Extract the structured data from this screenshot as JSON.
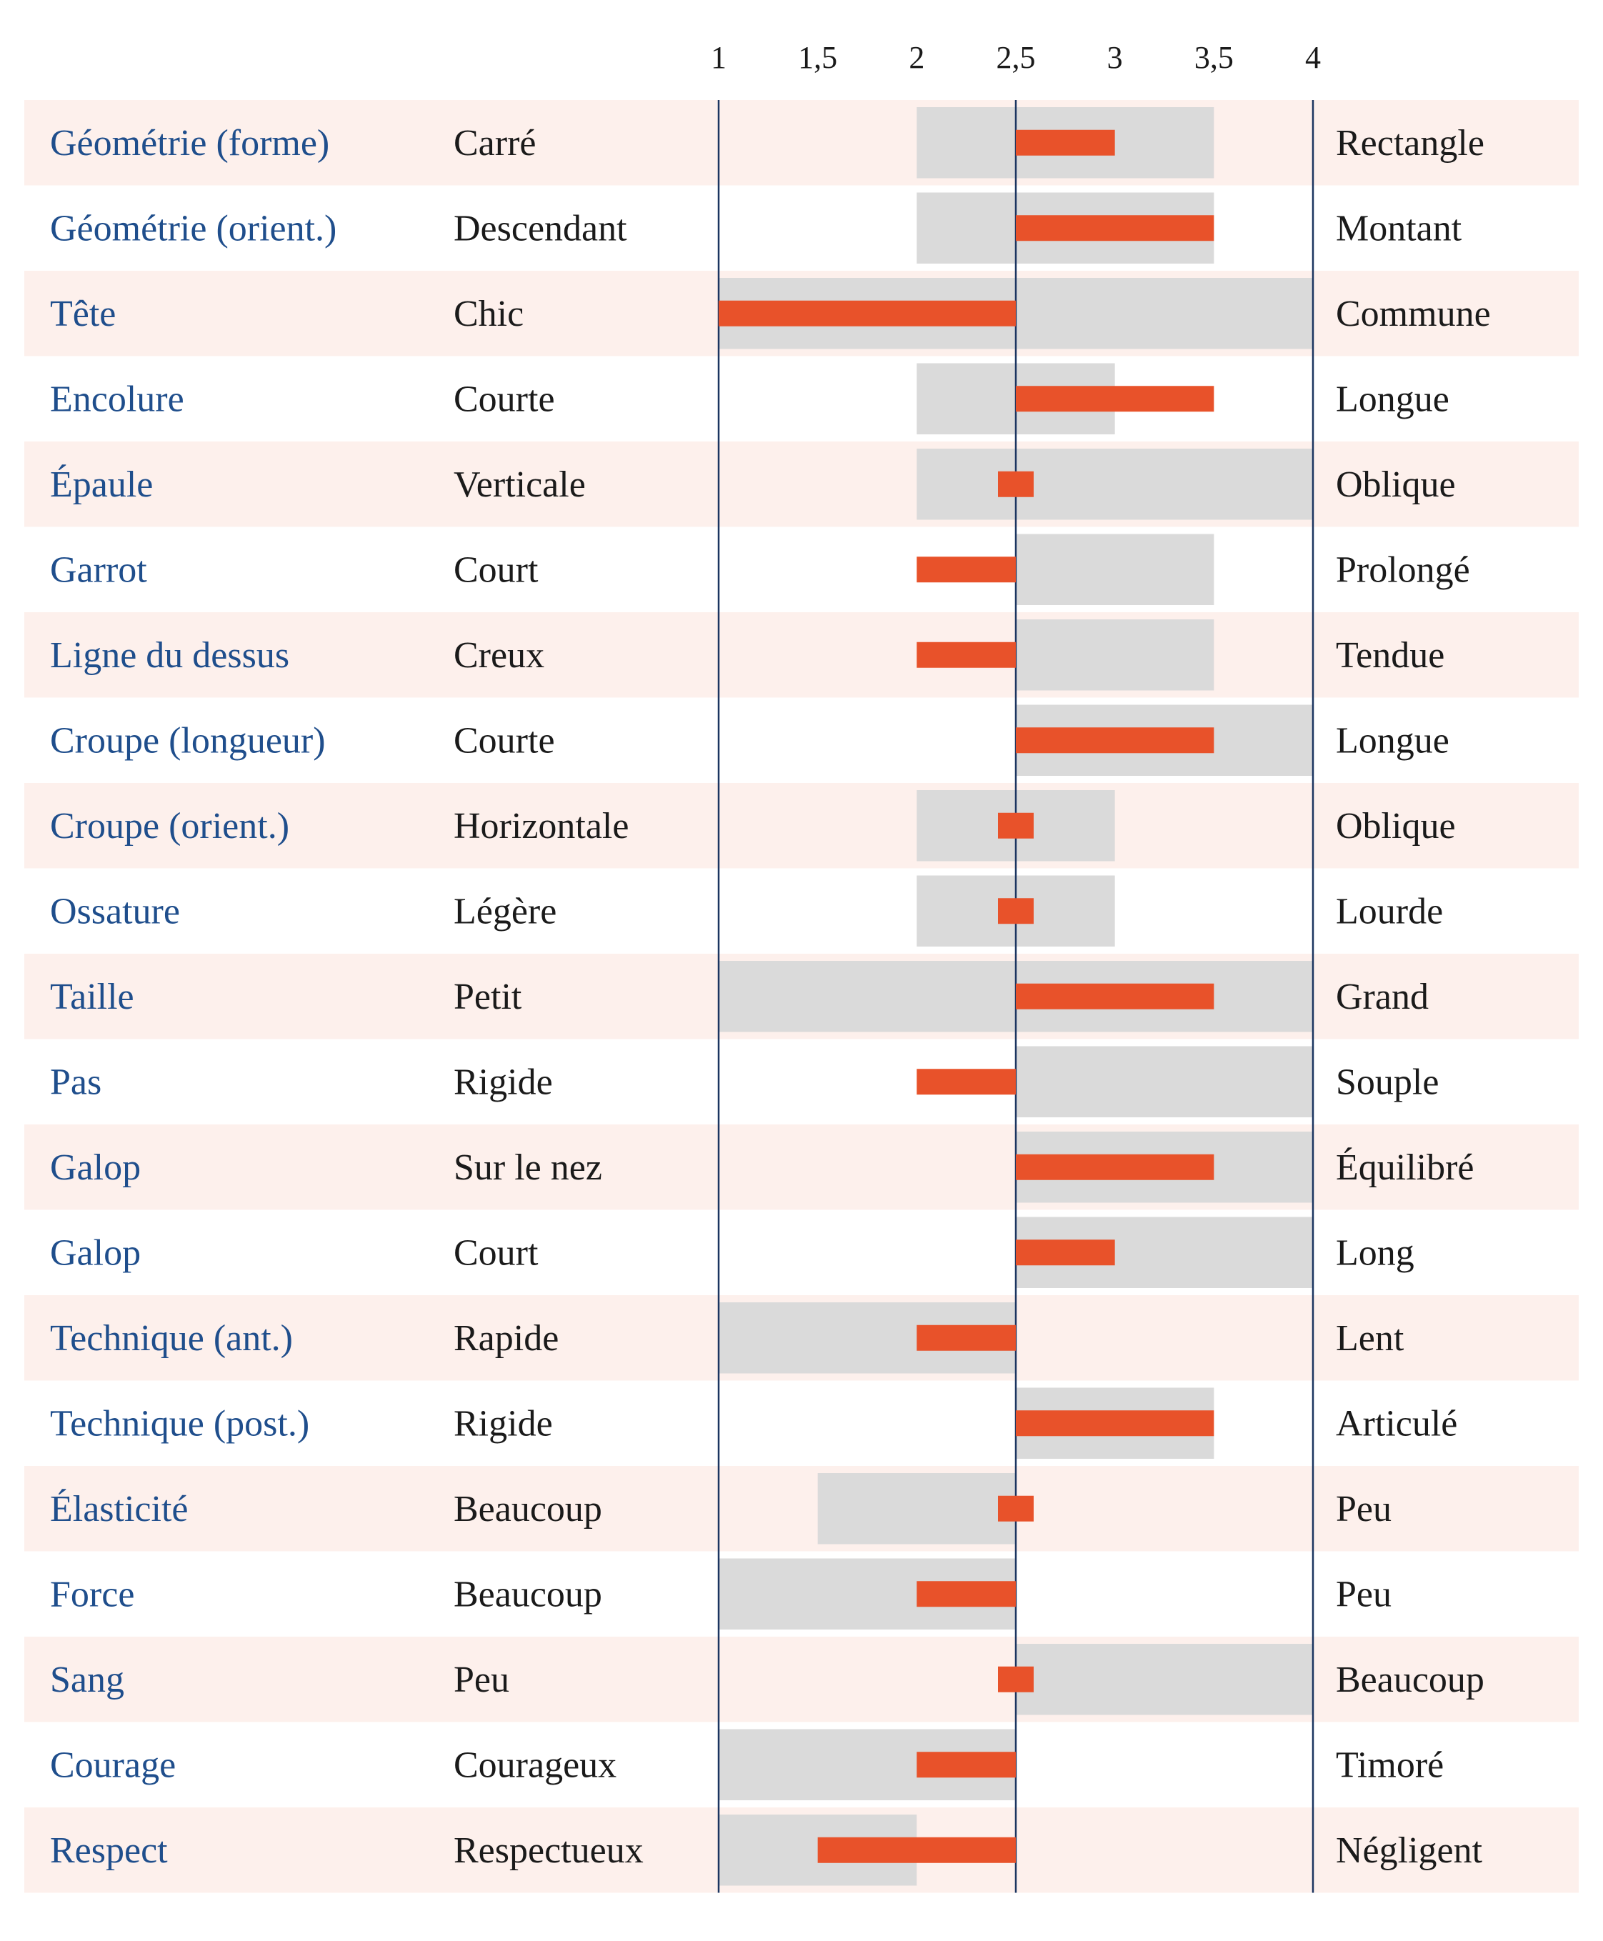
{
  "chart_data": {
    "type": "bar",
    "x_ticks": [
      "1",
      "1,5",
      "2",
      "2,5",
      "3",
      "3,5",
      "4"
    ],
    "x_tick_values": [
      1,
      1.5,
      2,
      2.5,
      3,
      3.5,
      4
    ],
    "xlim": [
      1,
      4
    ],
    "baseline": 2.5,
    "rows": [
      {
        "trait": "Géométrie (forme)",
        "left_pole": "Carré",
        "right_pole": "Rectangle",
        "value": 3.0,
        "range": [
          2.0,
          3.5
        ]
      },
      {
        "trait": "Géométrie (orient.)",
        "left_pole": "Descendant",
        "right_pole": "Montant",
        "value": 3.5,
        "range": [
          2.0,
          3.5
        ]
      },
      {
        "trait": "Tête",
        "left_pole": "Chic",
        "right_pole": "Commune",
        "value": 1.0,
        "range": [
          1.0,
          4.0
        ]
      },
      {
        "trait": "Encolure",
        "left_pole": "Courte",
        "right_pole": "Longue",
        "value": 3.5,
        "range": [
          2.0,
          3.0
        ]
      },
      {
        "trait": "Épaule",
        "left_pole": "Verticale",
        "right_pole": "Oblique",
        "value": 2.5,
        "range": [
          2.0,
          4.0
        ]
      },
      {
        "trait": "Garrot",
        "left_pole": "Court",
        "right_pole": "Prolongé",
        "value": 2.0,
        "range": [
          2.5,
          3.5
        ]
      },
      {
        "trait": "Ligne du dessus",
        "left_pole": "Creux",
        "right_pole": "Tendue",
        "value": 2.0,
        "range": [
          2.5,
          3.5
        ]
      },
      {
        "trait": "Croupe (longueur)",
        "left_pole": "Courte",
        "right_pole": "Longue",
        "value": 3.5,
        "range": [
          2.5,
          4.0
        ]
      },
      {
        "trait": "Croupe (orient.)",
        "left_pole": "Horizontale",
        "right_pole": "Oblique",
        "value": 2.5,
        "range": [
          2.0,
          3.0
        ]
      },
      {
        "trait": "Ossature",
        "left_pole": "Légère",
        "right_pole": "Lourde",
        "value": 2.5,
        "range": [
          2.0,
          3.0
        ]
      },
      {
        "trait": "Taille",
        "left_pole": "Petit",
        "right_pole": "Grand",
        "value": 3.5,
        "range": [
          1.0,
          4.0
        ]
      },
      {
        "trait": "Pas",
        "left_pole": "Rigide",
        "right_pole": "Souple",
        "value": 2.0,
        "range": [
          2.5,
          4.0
        ]
      },
      {
        "trait": "Galop",
        "left_pole": "Sur le nez",
        "right_pole": "Équilibré",
        "value": 3.5,
        "range": [
          2.5,
          4.0
        ]
      },
      {
        "trait": "Galop",
        "left_pole": "Court",
        "right_pole": "Long",
        "value": 3.0,
        "range": [
          2.5,
          4.0
        ]
      },
      {
        "trait": "Technique (ant.)",
        "left_pole": "Rapide",
        "right_pole": "Lent",
        "value": 2.0,
        "range": [
          1.0,
          2.5
        ]
      },
      {
        "trait": "Technique (post.)",
        "left_pole": "Rigide",
        "right_pole": "Articulé",
        "value": 3.5,
        "range": [
          2.5,
          3.5
        ]
      },
      {
        "trait": "Élasticité",
        "left_pole": "Beaucoup",
        "right_pole": "Peu",
        "value": 2.5,
        "range": [
          1.5,
          2.5
        ]
      },
      {
        "trait": "Force",
        "left_pole": "Beaucoup",
        "right_pole": "Peu",
        "value": 2.0,
        "range": [
          1.0,
          2.5
        ]
      },
      {
        "trait": "Sang",
        "left_pole": "Peu",
        "right_pole": "Beaucoup",
        "value": 2.5,
        "range": [
          2.5,
          4.0
        ]
      },
      {
        "trait": "Courage",
        "left_pole": "Courageux",
        "right_pole": "Timoré",
        "value": 2.0,
        "range": [
          1.0,
          2.5
        ]
      },
      {
        "trait": "Respect",
        "left_pole": "Respectueux",
        "right_pole": "Négligent",
        "value": 1.5,
        "range": [
          1.0,
          2.0
        ]
      }
    ],
    "colors": {
      "row_band": "#fdf0ec",
      "range_band": "#dadada",
      "value_bar": "#e8522a",
      "axis_line": "#1b3560",
      "trait_text": "#1f4e8c",
      "pole_text": "#1a1a1a"
    }
  }
}
